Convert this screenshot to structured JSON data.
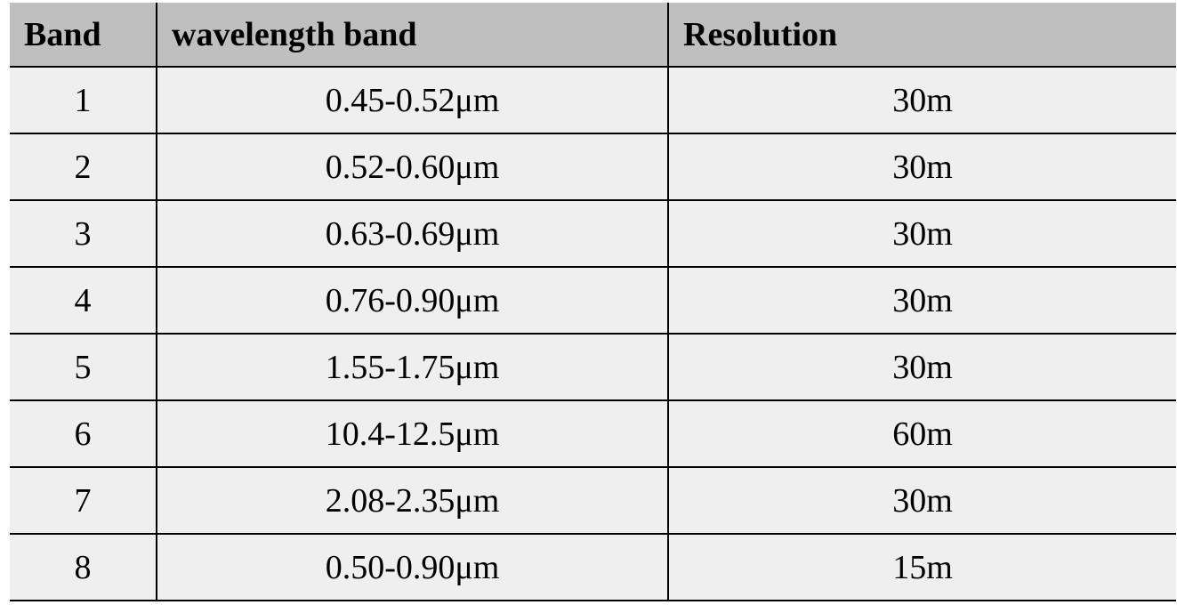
{
  "table": {
    "headers": [
      "Band",
      "wavelength band",
      "Resolution"
    ],
    "rows": [
      {
        "band": "1",
        "wavelength": "0.45-0.52μm",
        "resolution": "30m"
      },
      {
        "band": "2",
        "wavelength": "0.52-0.60μm",
        "resolution": "30m"
      },
      {
        "band": "3",
        "wavelength": "0.63-0.69μm",
        "resolution": "30m"
      },
      {
        "band": "4",
        "wavelength": "0.76-0.90μm",
        "resolution": "30m"
      },
      {
        "band": "5",
        "wavelength": "1.55-1.75μm",
        "resolution": "30m"
      },
      {
        "band": "6",
        "wavelength": "10.4-12.5μm",
        "resolution": "60m"
      },
      {
        "band": "7",
        "wavelength": "2.08-2.35μm",
        "resolution": "30m"
      },
      {
        "band": "8",
        "wavelength": "0.50-0.90μm",
        "resolution": "15m"
      }
    ]
  },
  "colors": {
    "header_background": "#bfbfbf",
    "row_background": "#efefef",
    "rule": "#000000"
  }
}
